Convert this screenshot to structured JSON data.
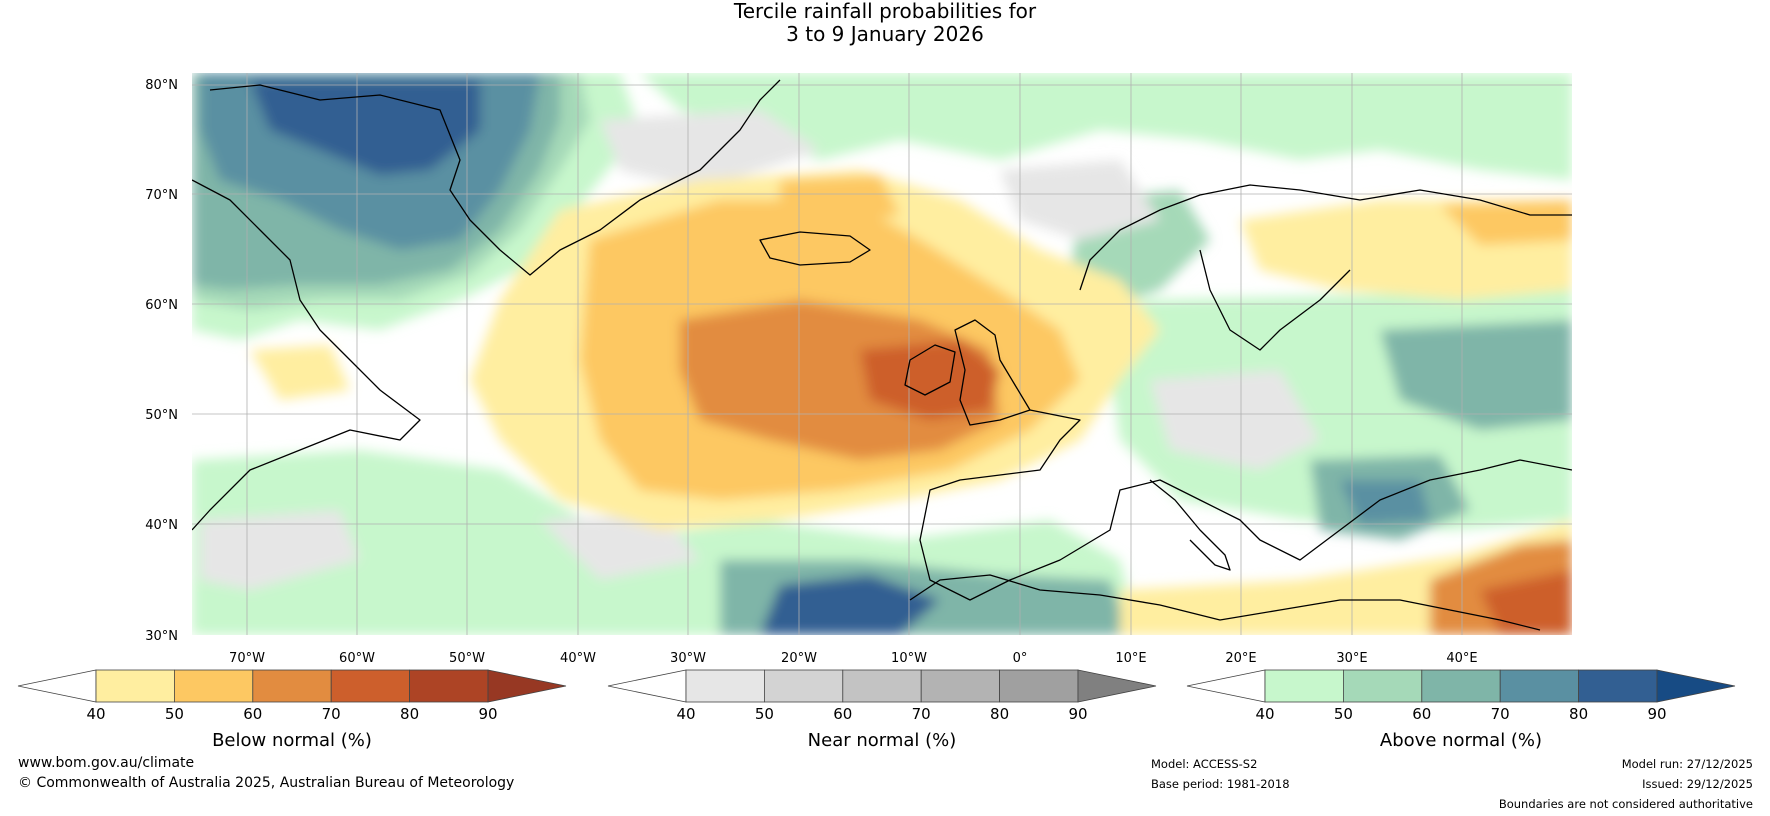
{
  "title": {
    "line1": "Tercile rainfall probabilities for",
    "line2": "3 to 9 January 2026"
  },
  "map": {
    "lat_labels": [
      "80°N",
      "70°N",
      "60°N",
      "50°N",
      "40°N",
      "30°N"
    ],
    "lon_labels": [
      "70°W",
      "60°W",
      "50°W",
      "40°W",
      "30°W",
      "20°W",
      "10°W",
      "0°",
      "10°E",
      "20°E",
      "30°E",
      "40°E"
    ]
  },
  "colorbars": [
    {
      "name": "below",
      "title": "Below normal (%)",
      "ticks": [
        "40",
        "50",
        "60",
        "70",
        "80",
        "90"
      ],
      "colors": [
        "#ffeea0",
        "#fdc862",
        "#e28c40",
        "#cd5f2c",
        "#ad4425"
      ],
      "over_color": "#973823",
      "under_color": "#ffffff"
    },
    {
      "name": "near",
      "title": "Near normal (%)",
      "ticks": [
        "40",
        "50",
        "60",
        "70",
        "80",
        "90"
      ],
      "colors": [
        "#e6e6e6",
        "#d3d3d3",
        "#c3c3c3",
        "#b3b3b3",
        "#a0a0a0"
      ],
      "over_color": "#808080",
      "under_color": "#ffffff"
    },
    {
      "name": "above",
      "title": "Above normal (%)",
      "ticks": [
        "40",
        "50",
        "60",
        "70",
        "80",
        "90"
      ],
      "colors": [
        "#c7f7cc",
        "#a5d9b8",
        "#7fb5a8",
        "#5a90a2",
        "#325f92"
      ],
      "over_color": "#174b84",
      "under_color": "#ffffff"
    }
  ],
  "footer": {
    "website": "www.bom.gov.au/climate",
    "copyright": "© Commonwealth of Australia 2025, Australian Bureau of Meteorology",
    "model": "Model: ACCESS-S2",
    "base_period": "Base period: 1981-2018",
    "model_run": "Model run: 27/12/2025",
    "issued": "Issued: 29/12/2025",
    "disclaimer": "Boundaries are not considered authoritative"
  }
}
